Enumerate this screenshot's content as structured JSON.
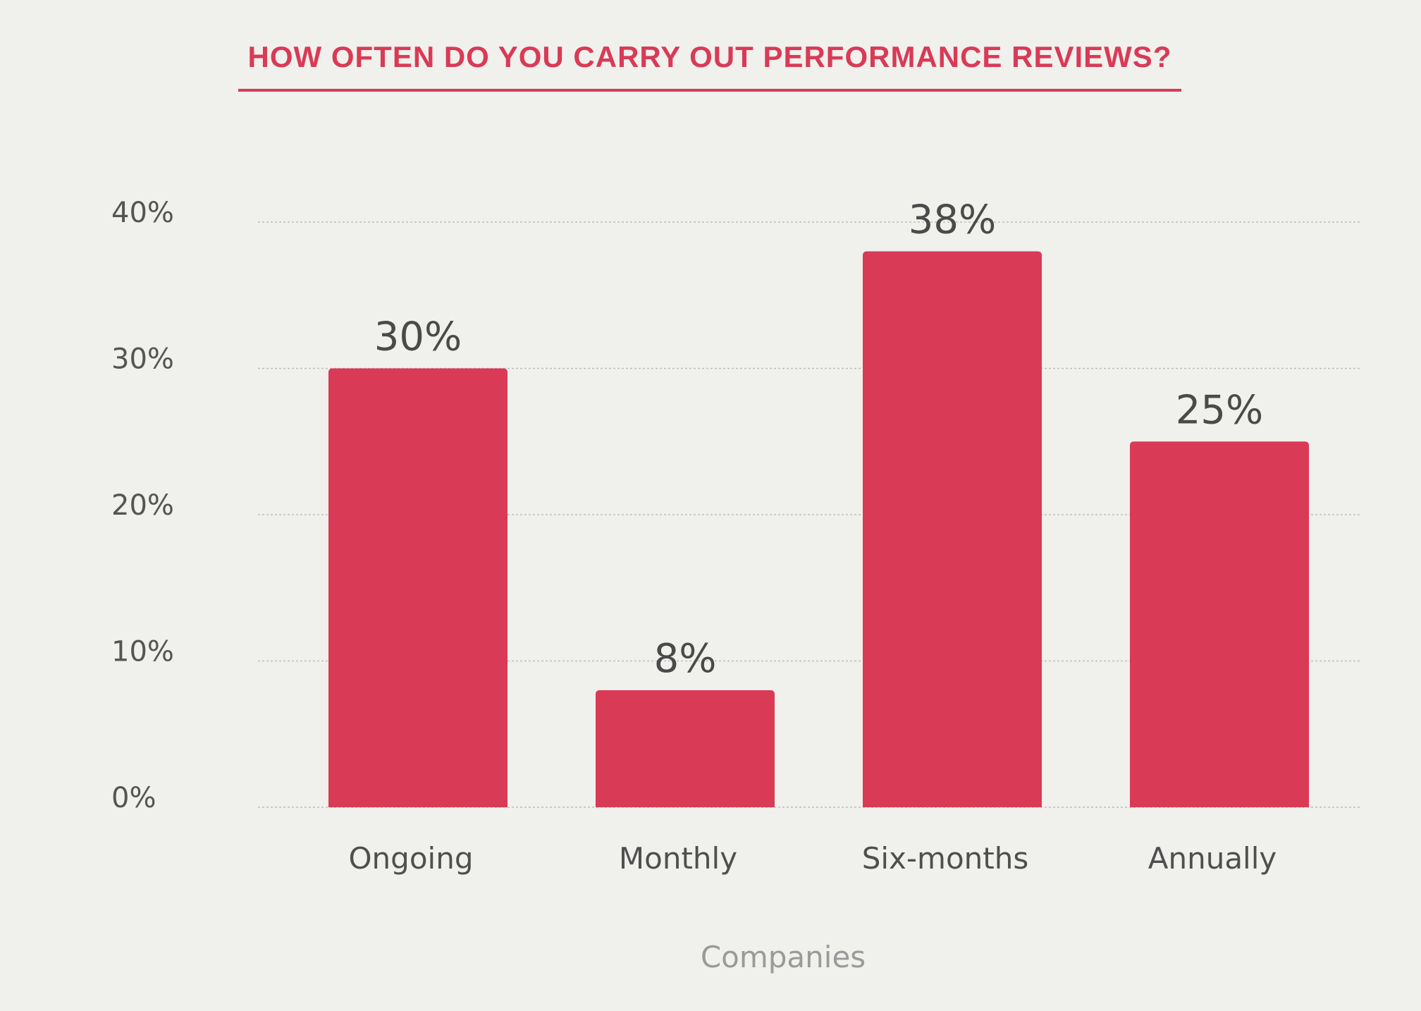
{
  "chart_data": {
    "type": "bar",
    "title": "HOW OFTEN DO YOU CARRY OUT PERFORMANCE REVIEWS?",
    "xlabel": "Companies",
    "ylabel": "",
    "categories": [
      "Ongoing",
      "Monthly",
      "Six-months",
      "Annually"
    ],
    "values": [
      30,
      8,
      38,
      25
    ],
    "value_labels": [
      "30%",
      "8%",
      "38%",
      "25%"
    ],
    "ylim": [
      0,
      40
    ],
    "yticks": [
      0,
      10,
      20,
      30,
      40
    ],
    "ytick_labels": [
      "0%",
      "10%",
      "20%",
      "30%",
      "40%"
    ],
    "grid": true,
    "legend": "none"
  },
  "colors": {
    "bar": "#d93a56",
    "title": "#d93a56",
    "grid": "#bdbdbd",
    "background": "#f0f0ec"
  }
}
